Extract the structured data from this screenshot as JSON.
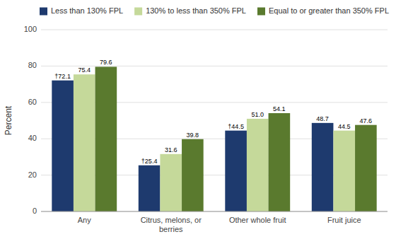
{
  "chart_data": {
    "type": "bar",
    "categories": [
      "Any",
      "Citrus, melons, or berries",
      "Other whole fruit",
      "Fruit juice"
    ],
    "series": [
      {
        "name": "Less than 130% FPL",
        "color": "#1e3a6e",
        "values": [
          72.1,
          25.4,
          44.5,
          48.7
        ],
        "value_labels": [
          "†72.1",
          "†25.4",
          "†44.5",
          "48.7"
        ]
      },
      {
        "name": "130% to less than 350% FPL",
        "color": "#c5d99a",
        "values": [
          75.4,
          31.6,
          51.0,
          44.5
        ],
        "value_labels": [
          "75.4",
          "31.6",
          "51.0",
          "44.5"
        ]
      },
      {
        "name": "Equal to or greater than 350% FPL",
        "color": "#5a7a2e",
        "values": [
          79.6,
          39.8,
          54.1,
          47.6
        ],
        "value_labels": [
          "79.6",
          "39.8",
          "54.1",
          "47.6"
        ]
      }
    ],
    "ylabel": "Percent",
    "ylim": [
      0,
      100
    ],
    "yticks": [
      0,
      20,
      40,
      60,
      80,
      100
    ],
    "grid": true,
    "legend": "top",
    "data_labels": true
  }
}
